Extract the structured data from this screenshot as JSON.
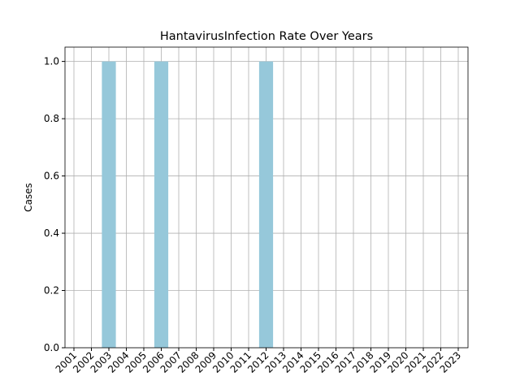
{
  "chart_data": {
    "type": "bar",
    "title": "HantavirusInfection Rate Over Years",
    "y_label": "Cases",
    "categories": [
      "2001",
      "2002",
      "2003",
      "2004",
      "2005",
      "2006",
      "2007",
      "2008",
      "2009",
      "2010",
      "2011",
      "2012",
      "2013",
      "2014",
      "2015",
      "2016",
      "2017",
      "2018",
      "2019",
      "2020",
      "2021",
      "2022",
      "2023"
    ],
    "values": [
      0,
      0,
      1,
      0,
      0,
      1,
      0,
      0,
      0,
      0,
      0,
      1,
      0,
      0,
      0,
      0,
      0,
      0,
      0,
      0,
      0,
      0,
      0
    ],
    "color": "#96c8da",
    "ylim": [
      0,
      1.05
    ],
    "yticks": [
      {
        "value": 0,
        "label": "0.0"
      },
      {
        "value": 0.2,
        "label": "0.2"
      },
      {
        "value": 0.4,
        "label": "0.4"
      },
      {
        "value": 0.6,
        "label": "0.6"
      },
      {
        "value": 0.8,
        "label": "0.8"
      },
      {
        "value": 1,
        "label": "1.0"
      }
    ],
    "grid": true
  }
}
